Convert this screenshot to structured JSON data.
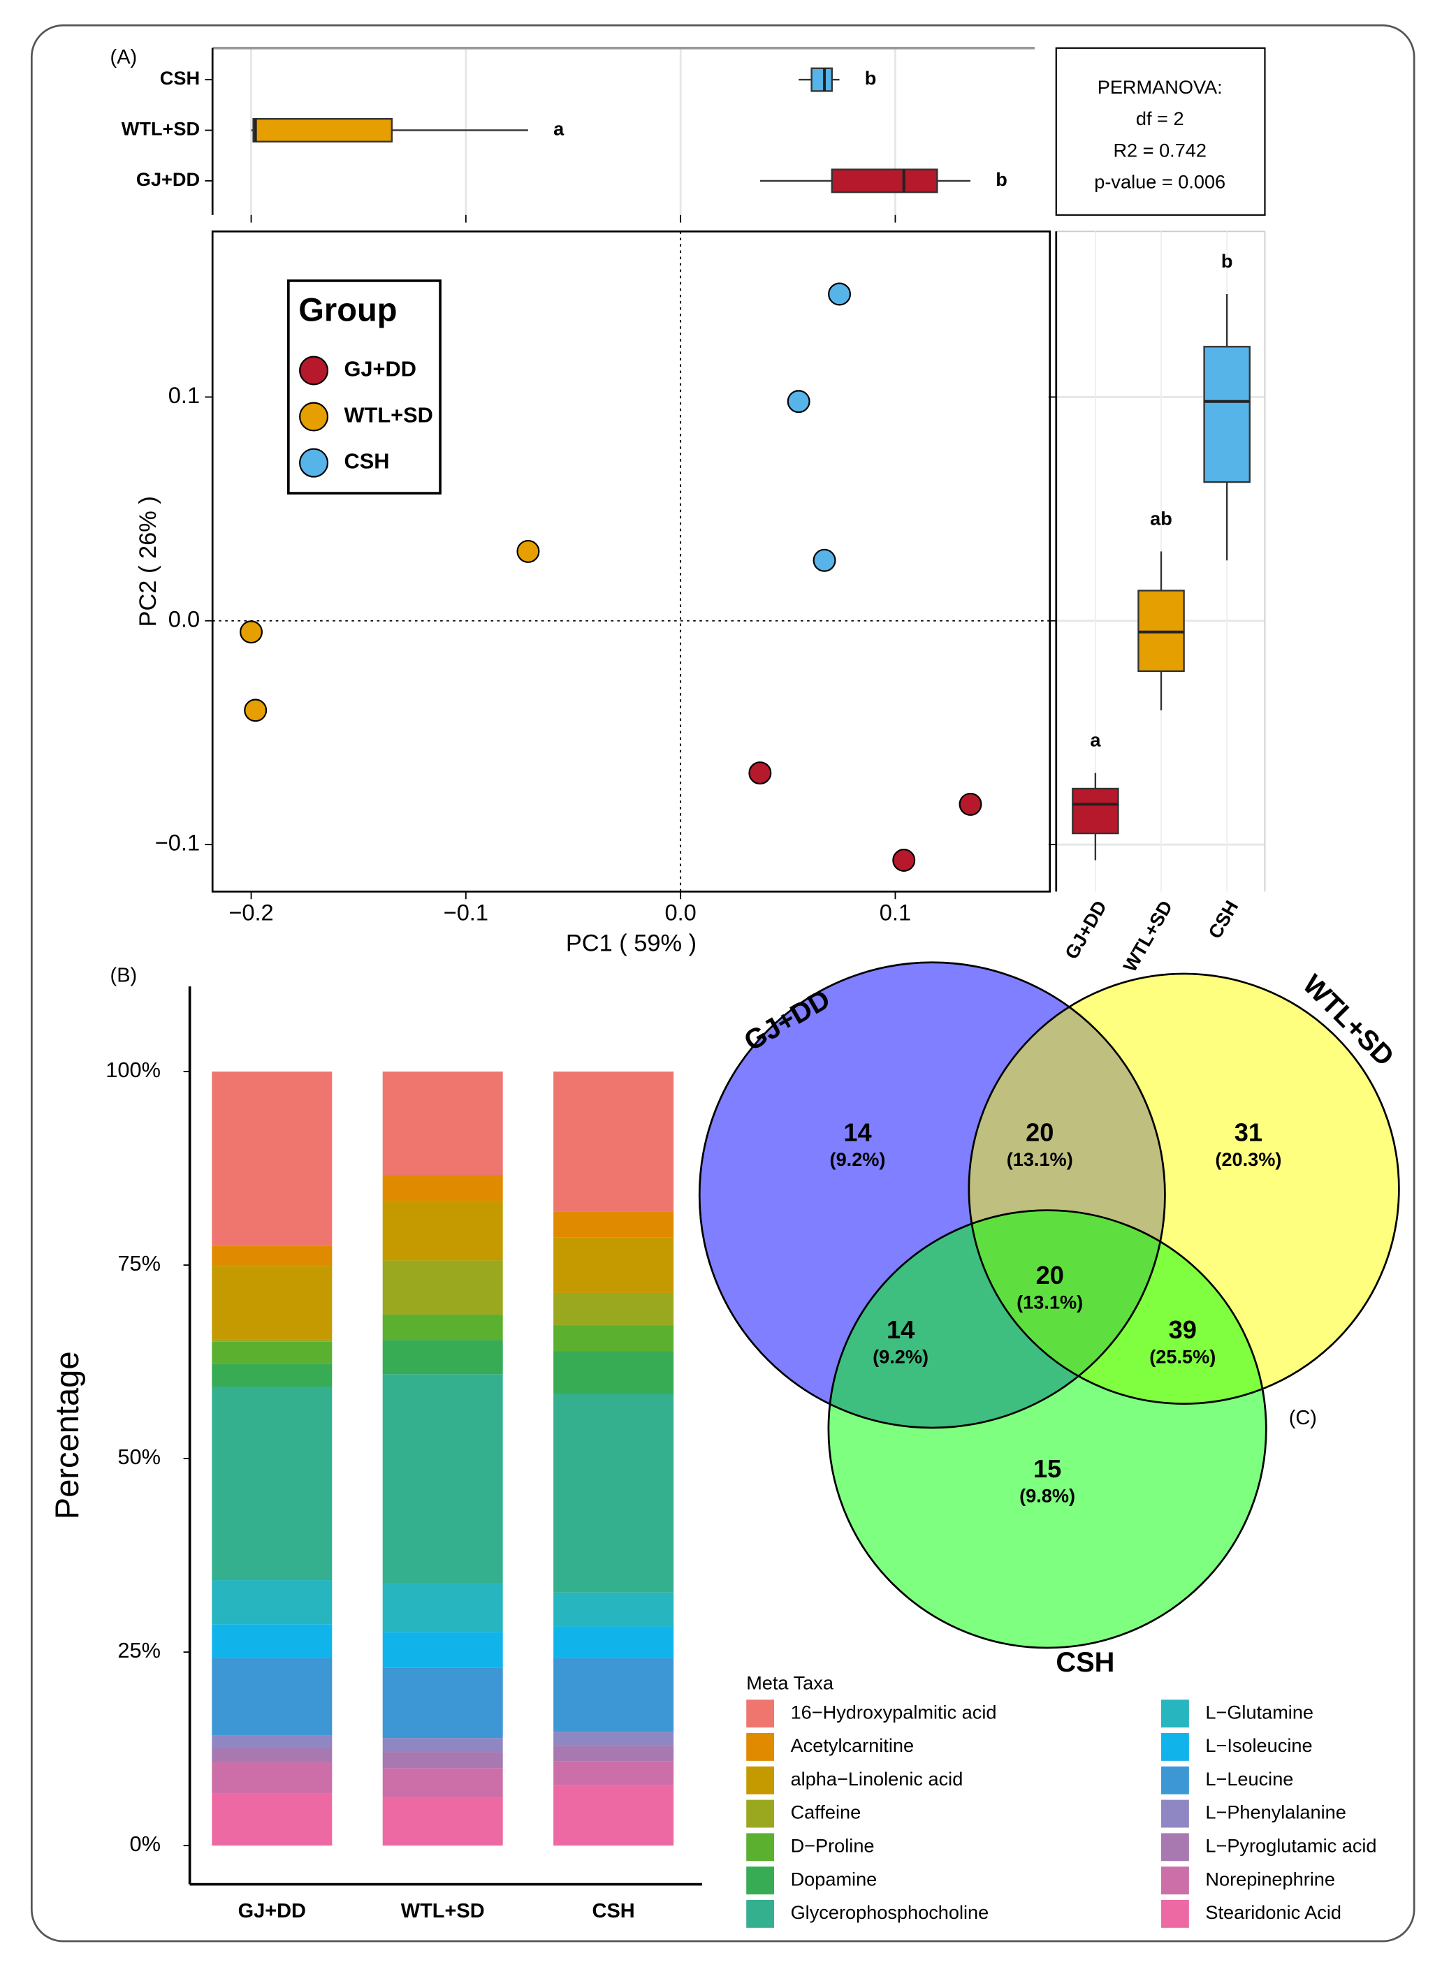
{
  "chart_data": [
    {
      "type": "scatter",
      "panel_label": "(A)",
      "xlabel": "PC1 ( 59% )",
      "ylabel": "PC2 ( 26% )",
      "xlim": [
        -0.218,
        0.172
      ],
      "ylim": [
        -0.121,
        0.174
      ],
      "xticks": [
        {
          "value": -0.2,
          "label": "−0.2"
        },
        {
          "value": -0.1,
          "label": "−0.1"
        },
        {
          "value": 0,
          "label": "0.0"
        },
        0.1
      ],
      "yticks": [
        {
          "value": -0.1,
          "label": "−0.1"
        },
        {
          "value": 0,
          "label": "0.0"
        },
        0.1
      ],
      "hlines": [
        0
      ],
      "vlines": [
        0
      ],
      "legend_title": "Group",
      "legend_position": "top-left",
      "series": [
        {
          "name": "GJ+DD",
          "color": "#b5192b",
          "x": [
            0.037,
            0.135,
            0.104
          ],
          "values": [
            -0.068,
            -0.082,
            -0.107
          ]
        },
        {
          "name": "WTL+SD",
          "color": "#e69f00",
          "x": [
            -0.071,
            -0.2,
            -0.198
          ],
          "values": [
            0.031,
            -0.005,
            -0.04
          ]
        },
        {
          "name": "CSH",
          "color": "#56b4e9",
          "x": [
            0.074,
            0.055,
            0.067
          ],
          "values": [
            0.146,
            0.098,
            0.027
          ]
        }
      ],
      "annotation": [
        "PERMANOVA:",
        "df = 2",
        "R2 = 0.742",
        "p-value = 0.006"
      ]
    },
    {
      "type": "boxplot",
      "orientation": "horizontal",
      "xlim": [
        -0.218,
        0.172
      ],
      "xticks": [
        -0.2,
        -0.1,
        0,
        0.1
      ],
      "series": [
        {
          "name": "GJ+DD",
          "color": "#b5192b",
          "values": [
            0.037,
            0.0705,
            0.104,
            0.1195,
            0.135
          ],
          "letter": "b"
        },
        {
          "name": "WTL+SD",
          "color": "#e69f00",
          "values": [
            -0.2,
            -0.199,
            -0.198,
            -0.1345,
            -0.071
          ],
          "letter": "a"
        },
        {
          "name": "CSH",
          "color": "#56b4e9",
          "values": [
            0.055,
            0.061,
            0.067,
            0.0705,
            0.074
          ],
          "letter": "b"
        }
      ]
    },
    {
      "type": "boxplot",
      "orientation": "vertical",
      "ylim": [
        -0.121,
        0.174
      ],
      "yticks": [
        -0.1,
        0,
        0.1
      ],
      "series": [
        {
          "name": "GJ+DD",
          "color": "#b5192b",
          "values": [
            -0.107,
            -0.095,
            -0.082,
            -0.075,
            -0.068
          ],
          "letter": "a"
        },
        {
          "name": "WTL+SD",
          "color": "#e69f00",
          "values": [
            -0.04,
            -0.0225,
            -0.005,
            0.0135,
            0.031
          ],
          "letter": "ab"
        },
        {
          "name": "CSH",
          "color": "#56b4e9",
          "values": [
            0.027,
            0.062,
            0.098,
            0.1225,
            0.146
          ],
          "letter": "b"
        }
      ]
    },
    {
      "type": "stacked_bar",
      "panel_label": "(B)",
      "ylabel": "Percentage",
      "categories": [
        "GJ+DD",
        "WTL+SD",
        "CSH"
      ],
      "ylim": [
        -5,
        111
      ],
      "yticks": [
        {
          "value": 0,
          "label": "0%"
        },
        {
          "value": 25,
          "label": "25%"
        },
        {
          "value": 50,
          "label": "50%"
        },
        {
          "value": 75,
          "label": "75%"
        },
        {
          "value": 100,
          "label": "100%"
        }
      ],
      "legend_title": "Meta Taxa",
      "series": [
        {
          "name": "16−Hydroxypalmitic acid",
          "color": "#ee766f",
          "values": [
            22.5,
            13.4,
            18.1
          ]
        },
        {
          "name": "Acetylcarnitine",
          "color": "#e08a00",
          "values": [
            2.6,
            3.3,
            3.3
          ]
        },
        {
          "name": "alpha−Linolenic acid",
          "color": "#c49a00",
          "values": [
            9.5,
            7.7,
            7.2
          ]
        },
        {
          "name": "Caffeine",
          "color": "#9aa81f",
          "values": [
            0.3,
            7.0,
            4.2
          ]
        },
        {
          "name": "D−Proline",
          "color": "#5bb030",
          "values": [
            2.9,
            3.3,
            3.3
          ]
        },
        {
          "name": "Dopamine",
          "color": "#38ab55",
          "values": [
            2.9,
            4.4,
            5.5
          ]
        },
        {
          "name": "Glycerophosphocholine",
          "color": "#35b08e",
          "values": [
            25.0,
            27.1,
            25.7
          ]
        },
        {
          "name": "L−Glutamine",
          "color": "#27b5bf",
          "values": [
            5.7,
            6.2,
            4.4
          ]
        },
        {
          "name": "L−Isoleucine",
          "color": "#10b4eb",
          "values": [
            4.4,
            4.6,
            4.1
          ]
        },
        {
          "name": "L−Leucine",
          "color": "#3d97d4",
          "values": [
            10.0,
            9.1,
            9.5
          ]
        },
        {
          "name": "L−Phenylalanine",
          "color": "#8e87c3",
          "values": [
            1.6,
            1.8,
            1.8
          ]
        },
        {
          "name": "L−Pyroglutamic acid",
          "color": "#a779b0",
          "values": [
            1.8,
            2.1,
            2.0
          ]
        },
        {
          "name": "Norepinephrine",
          "color": "#cc6fa8",
          "values": [
            4.1,
            3.8,
            3.1
          ]
        },
        {
          "name": "Stearidonic Acid",
          "color": "#ec69a4",
          "values": [
            6.7,
            6.2,
            7.8
          ]
        }
      ]
    },
    {
      "type": "venn",
      "panel_label": "(C)",
      "sets": [
        {
          "name": "GJ+DD",
          "color": "#0000ff",
          "label_color": "#6b6be8"
        },
        {
          "name": "WTL+SD",
          "color": "#ffff00",
          "label_color": "#d6d636"
        },
        {
          "name": "CSH",
          "color": "#00ff00",
          "label_color": "#3ccf3c"
        }
      ],
      "regions": [
        {
          "sets": [
            "GJ+DD"
          ],
          "count": 14,
          "percent": {
            "value": 9.2,
            "label": "(9.2%)"
          }
        },
        {
          "sets": [
            "GJ+DD",
            "WTL+SD"
          ],
          "count": 20,
          "percent": {
            "value": 13.1,
            "label": "(13.1%)"
          }
        },
        {
          "sets": [
            "WTL+SD"
          ],
          "count": 31,
          "percent": {
            "value": 20.3,
            "label": "(20.3%)"
          }
        },
        {
          "sets": [
            "GJ+DD",
            "WTL+SD",
            "CSH"
          ],
          "count": 20,
          "percent": {
            "value": 13.1,
            "label": "(13.1%)"
          }
        },
        {
          "sets": [
            "GJ+DD",
            "CSH"
          ],
          "count": 14,
          "percent": {
            "value": 9.2,
            "label": "(9.2%)"
          }
        },
        {
          "sets": [
            "WTL+SD",
            "CSH"
          ],
          "count": 39,
          "percent": {
            "value": 25.5,
            "label": "(25.5%)"
          }
        },
        {
          "sets": [
            "CSH"
          ],
          "count": 15,
          "percent": {
            "value": 9.8,
            "label": "(9.8%)"
          }
        }
      ]
    }
  ]
}
